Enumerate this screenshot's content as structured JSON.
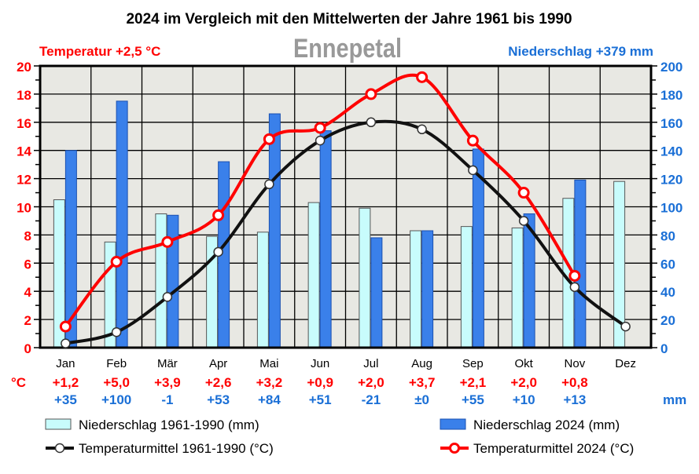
{
  "chart_data": {
    "type": "bar+line",
    "title": "2024 im Vergleich mit den Mittelwerten der Jahre 1961 bis 1990",
    "station": "Ennepetal",
    "temp_summary": "Temperatur +2,5 °C",
    "precip_summary": "Niederschlag +379 mm",
    "categories": [
      "Jan",
      "Feb",
      "Mär",
      "Apr",
      "Mai",
      "Jun",
      "Jul",
      "Aug",
      "Sep",
      "Okt",
      "Nov",
      "Dez"
    ],
    "y_left": {
      "unit": "°C",
      "range": [
        0,
        20
      ],
      "ticks": [
        "0",
        "2",
        "4",
        "6",
        "8",
        "10",
        "12",
        "14",
        "16",
        "18",
        "20"
      ],
      "color": "#ff0000"
    },
    "y_right": {
      "unit": "mm",
      "range": [
        0,
        200
      ],
      "ticks": [
        "0",
        "20",
        "40",
        "60",
        "80",
        "100",
        "120",
        "140",
        "160",
        "180",
        "200"
      ],
      "color": "#1a6fd6"
    },
    "grid": true,
    "series": [
      {
        "name": "Niederschlag 1961-1990 (mm)",
        "kind": "bar",
        "axis": "right",
        "color": "#c8fcfc",
        "values": [
          105,
          75,
          95,
          79,
          82,
          103,
          99,
          83,
          86,
          85,
          106,
          118
        ]
      },
      {
        "name": "Niederschlag 2024 (mm)",
        "kind": "bar",
        "axis": "right",
        "color": "#3a80ea",
        "values": [
          140,
          175,
          94,
          132,
          166,
          154,
          78,
          83,
          141,
          95,
          119,
          null
        ]
      },
      {
        "name": "Temperaturmittel 1961-1990 (°C)",
        "kind": "line",
        "axis": "left",
        "color": "#111111",
        "values": [
          0.3,
          1.1,
          3.6,
          6.8,
          11.6,
          14.7,
          16.0,
          15.5,
          12.6,
          9.0,
          4.3,
          1.5
        ]
      },
      {
        "name": "Temperaturmittel 2024 (°C)",
        "kind": "line",
        "axis": "left",
        "color": "#ff0000",
        "values": [
          1.5,
          6.1,
          7.5,
          9.4,
          14.8,
          15.6,
          18.0,
          19.2,
          14.7,
          11.0,
          5.1,
          null
        ]
      }
    ],
    "temp_diff_label": "°C",
    "temp_diff": [
      "+1,2",
      "+5,0",
      "+3,9",
      "+2,6",
      "+3,2",
      "+0,9",
      "+2,0",
      "+3,7",
      "+2,1",
      "+2,0",
      "+0,8",
      ""
    ],
    "precip_diff_label": "mm",
    "precip_diff": [
      "+35",
      "+100",
      "-1",
      "+53",
      "+84",
      "+51",
      "-21",
      "±0",
      "+55",
      "+10",
      "+13",
      ""
    ],
    "legend_placement": "bottom"
  }
}
